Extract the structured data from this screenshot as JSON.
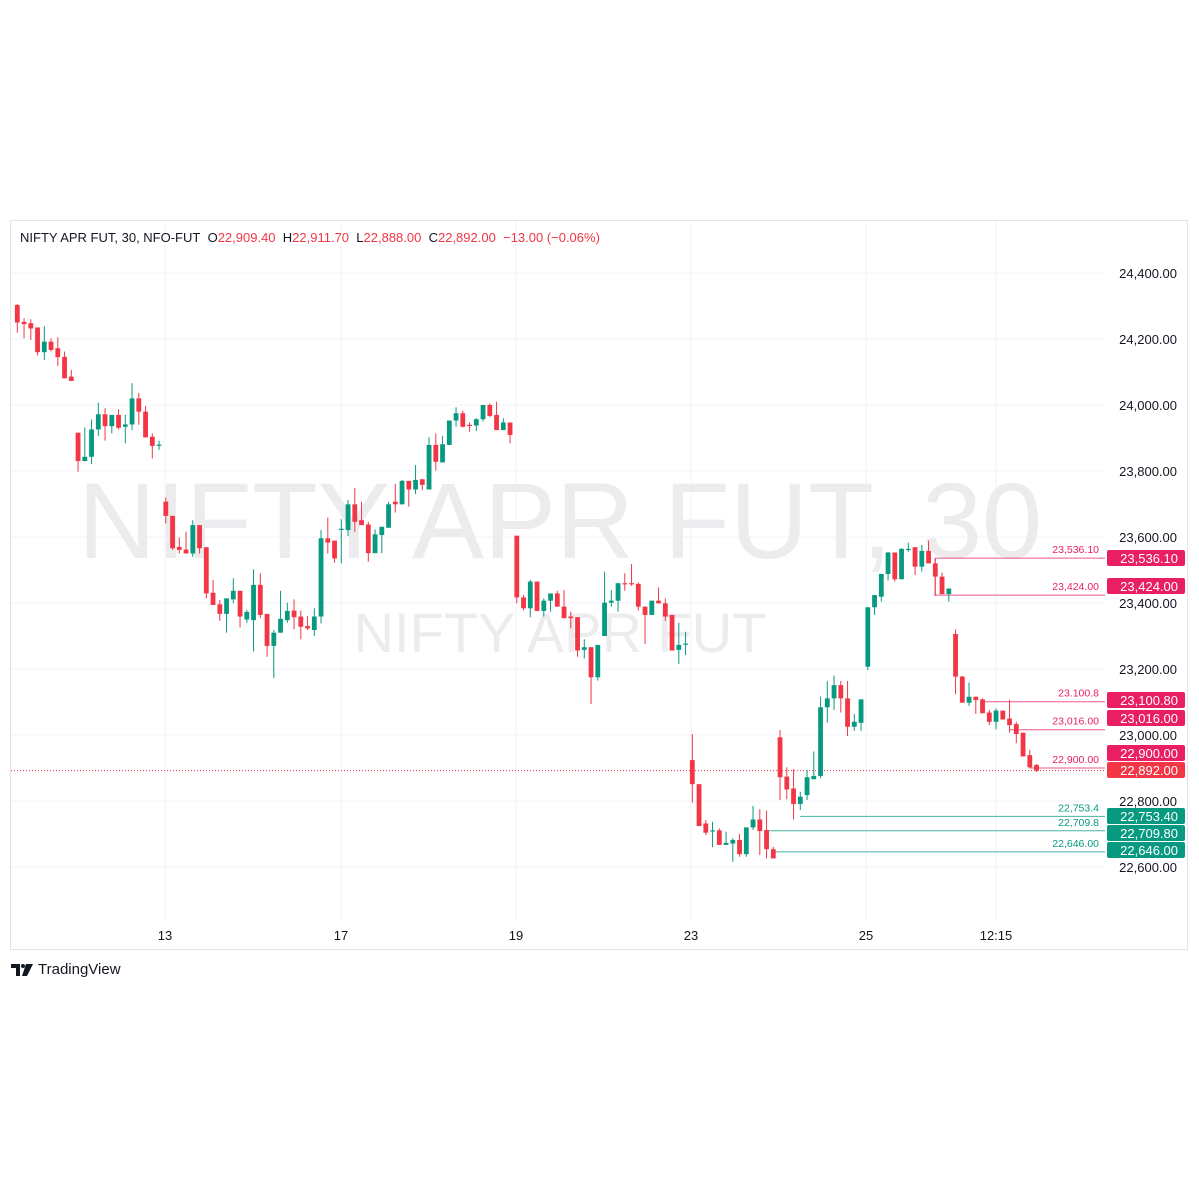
{
  "legend": {
    "symbol": "NIFTY APR FUT, 30, NFO-FUT",
    "o_label": "O",
    "o": "22,909.40",
    "h_label": "H",
    "h": "22,911.70",
    "l_label": "L",
    "l": "22,888.00",
    "c_label": "C",
    "c": "22,892.00",
    "change": "−13.00 (−0.06%)"
  },
  "watermark": {
    "line1": "NIFTY APR FUT, 30",
    "line2": "NIFTY APR FUT"
  },
  "branding": {
    "name": "TradingView"
  },
  "colors": {
    "up": "#089981",
    "down": "#f23645",
    "level_pink": "#e91e63",
    "level_green": "#089981",
    "last_price": "#f23645"
  },
  "chart_data": {
    "type": "candlestick",
    "title": "",
    "interval": "30",
    "ylim": [
      22500,
      24500
    ],
    "grid": true,
    "y_ticks": [
      "24,400.00",
      "24,200.00",
      "24,000.00",
      "23,800.00",
      "23,600.00",
      "23,400.00",
      "23,200.00",
      "23,000.00",
      "22,800.00",
      "22,600.00"
    ],
    "x_ticks": [
      "13",
      "17",
      "19",
      "23",
      "25",
      "12:15"
    ],
    "ohlc": [
      [
        24303,
        24306,
        24219,
        24250
      ],
      [
        24252,
        24263,
        24202,
        24245
      ],
      [
        24248,
        24260,
        24197,
        24232
      ],
      [
        24235,
        24235,
        24150,
        24160
      ],
      [
        24160,
        24239,
        24136,
        24192
      ],
      [
        24192,
        24202,
        24162,
        24167
      ],
      [
        24172,
        24205,
        24118,
        24145
      ],
      [
        24146,
        24162,
        24081,
        24081
      ],
      [
        24086,
        24106,
        24073,
        24073
      ],
      [
        23916,
        23916,
        23798,
        23830
      ],
      [
        23830,
        23932,
        23830,
        23843
      ],
      [
        23843,
        23956,
        23821,
        23926
      ],
      [
        23926,
        24007,
        23906,
        23972
      ],
      [
        23972,
        23990,
        23892,
        23936
      ],
      [
        23936,
        23970,
        23914,
        23970
      ],
      [
        23970,
        23987,
        23926,
        23931
      ],
      [
        23934,
        23970,
        23884,
        23941
      ],
      [
        23941,
        24066,
        23924,
        24020
      ],
      [
        24020,
        24037,
        23940,
        23980
      ],
      [
        23980,
        23997,
        23902,
        23902
      ],
      [
        23904,
        23914,
        23838,
        23876
      ],
      [
        23878,
        23892,
        23864,
        23880
      ],
      [
        23707,
        23720,
        23641,
        23664
      ],
      [
        23664,
        23664,
        23561,
        23566
      ],
      [
        23570,
        23599,
        23550,
        23561
      ],
      [
        23562,
        23616,
        23550,
        23550
      ],
      [
        23550,
        23651,
        23540,
        23636
      ],
      [
        23636,
        23636,
        23550,
        23566
      ],
      [
        23569,
        23569,
        23414,
        23429
      ],
      [
        23431,
        23470,
        23394,
        23394
      ],
      [
        23396,
        23409,
        23346,
        23367
      ],
      [
        23367,
        23414,
        23310,
        23414
      ],
      [
        23411,
        23475,
        23399,
        23437
      ],
      [
        23437,
        23437,
        23326,
        23359
      ],
      [
        23350,
        23379,
        23340,
        23373
      ],
      [
        23348,
        23502,
        23253,
        23455
      ],
      [
        23455,
        23490,
        23354,
        23364
      ],
      [
        23367,
        23367,
        23237,
        23270
      ],
      [
        23270,
        23318,
        23172,
        23310
      ],
      [
        23310,
        23437,
        23310,
        23352
      ],
      [
        23348,
        23401,
        23340,
        23376
      ],
      [
        23377,
        23411,
        23320,
        23357
      ],
      [
        23359,
        23377,
        23290,
        23328
      ],
      [
        23330,
        23360,
        23318,
        23323
      ],
      [
        23318,
        23384,
        23300,
        23359
      ],
      [
        23359,
        23621,
        23338,
        23596
      ],
      [
        23596,
        23659,
        23550,
        23583
      ],
      [
        23589,
        23589,
        23522,
        23535
      ],
      [
        23623,
        23654,
        23520,
        23625
      ],
      [
        23621,
        23712,
        23603,
        23699
      ],
      [
        23699,
        23748,
        23616,
        23646
      ],
      [
        23651,
        23707,
        23636,
        23636
      ],
      [
        23638,
        23646,
        23525,
        23551
      ],
      [
        23551,
        23623,
        23551,
        23608
      ],
      [
        23606,
        23631,
        23551,
        23631
      ],
      [
        23628,
        23707,
        23628,
        23699
      ],
      [
        23707,
        23761,
        23674,
        23699
      ],
      [
        23699,
        23773,
        23699,
        23770
      ],
      [
        23770,
        23770,
        23692,
        23744
      ],
      [
        23744,
        23818,
        23730,
        23773
      ],
      [
        23775,
        23775,
        23742,
        23758
      ],
      [
        23744,
        23902,
        23744,
        23879
      ],
      [
        23879,
        23914,
        23801,
        23828
      ],
      [
        23826,
        23906,
        23826,
        23881
      ],
      [
        23879,
        23953,
        23879,
        23953
      ],
      [
        23953,
        23993,
        23934,
        23975
      ],
      [
        23975,
        23983,
        23932,
        23934
      ],
      [
        23940,
        23947,
        23919,
        23938
      ],
      [
        23938,
        23960,
        23921,
        23957
      ],
      [
        23957,
        24000,
        23950,
        24000
      ],
      [
        24000,
        24005,
        23963,
        23967
      ],
      [
        23970,
        24010,
        23924,
        23924
      ],
      [
        23924,
        23960,
        23924,
        23947
      ],
      [
        23947,
        23947,
        23884,
        23909
      ],
      [
        23604,
        23604,
        23399,
        23417
      ],
      [
        23417,
        23424,
        23377,
        23384
      ],
      [
        23384,
        23470,
        23357,
        23465
      ],
      [
        23465,
        23465,
        23376,
        23376
      ],
      [
        23376,
        23414,
        23359,
        23407
      ],
      [
        23407,
        23429,
        23374,
        23429
      ],
      [
        23429,
        23437,
        23389,
        23389
      ],
      [
        23389,
        23439,
        23354,
        23354
      ],
      [
        23359,
        23374,
        23323,
        23354
      ],
      [
        23357,
        23357,
        23237,
        23256
      ],
      [
        23258,
        23290,
        23232,
        23266
      ],
      [
        23266,
        23266,
        23094,
        23175
      ],
      [
        23175,
        23273,
        23165,
        23273
      ],
      [
        23300,
        23495,
        23300,
        23401
      ],
      [
        23401,
        23439,
        23389,
        23407
      ],
      [
        23407,
        23460,
        23374,
        23460
      ],
      [
        23460,
        23490,
        23437,
        23458
      ],
      [
        23460,
        23518,
        23452,
        23458
      ],
      [
        23458,
        23462,
        23377,
        23389
      ],
      [
        23389,
        23389,
        23276,
        23364
      ],
      [
        23364,
        23407,
        23364,
        23407
      ],
      [
        23407,
        23447,
        23399,
        23399
      ],
      [
        23399,
        23414,
        23346,
        23359
      ],
      [
        23364,
        23364,
        23256,
        23256
      ],
      [
        23258,
        23340,
        23215,
        23273
      ],
      [
        23275,
        23313,
        23242,
        23277
      ],
      [
        22924,
        23003,
        22795,
        22851
      ],
      [
        22851,
        22851,
        22724,
        22724
      ],
      [
        22732,
        22742,
        22697,
        22704
      ],
      [
        22709,
        22737,
        22660,
        22711
      ],
      [
        22711,
        22717,
        22667,
        22667
      ],
      [
        22667,
        22707,
        22667,
        22673
      ],
      [
        22671,
        22687,
        22616,
        22682
      ],
      [
        22682,
        22700,
        22631,
        22639
      ],
      [
        22639,
        22720,
        22631,
        22720
      ],
      [
        22720,
        22785,
        22712,
        22744
      ],
      [
        22744,
        22775,
        22636,
        22709
      ],
      [
        22712,
        22771,
        22626,
        22654
      ],
      [
        22654,
        22661,
        22626,
        22626
      ],
      [
        22993,
        23015,
        22803,
        22872
      ],
      [
        22874,
        22902,
        22805,
        22835
      ],
      [
        22838,
        22896,
        22744,
        22791
      ],
      [
        22791,
        22828,
        22773,
        22813
      ],
      [
        22818,
        22894,
        22803,
        22872
      ],
      [
        22866,
        22950,
        22866,
        22876
      ],
      [
        22876,
        23116,
        22869,
        23084
      ],
      [
        23084,
        23164,
        23037,
        23111
      ],
      [
        23111,
        23180,
        23076,
        23151
      ],
      [
        23151,
        23164,
        23068,
        23111
      ],
      [
        23111,
        23164,
        22997,
        23025
      ],
      [
        23025,
        23064,
        23013,
        23040
      ],
      [
        23037,
        23108,
        23013,
        23108
      ],
      [
        23207,
        23387,
        23197,
        23387
      ],
      [
        23387,
        23424,
        23364,
        23424
      ],
      [
        23419,
        23488,
        23404,
        23488
      ],
      [
        23488,
        23555,
        23468,
        23553
      ],
      [
        23553,
        23553,
        23465,
        23472
      ],
      [
        23472,
        23566,
        23472,
        23564
      ],
      [
        23562,
        23583,
        23555,
        23564
      ],
      [
        23569,
        23569,
        23485,
        23510
      ],
      [
        23510,
        23576,
        23495,
        23558
      ],
      [
        23558,
        23589,
        23520,
        23520
      ],
      [
        23520,
        23535,
        23421,
        23480
      ],
      [
        23480,
        23492,
        23427,
        23427
      ],
      [
        23427,
        23444,
        23404,
        23444
      ],
      [
        23306,
        23320,
        23124,
        23177
      ],
      [
        23177,
        23179,
        23098,
        23098
      ],
      [
        23098,
        23159,
        23088,
        23116
      ],
      [
        23116,
        23116,
        23064,
        23106
      ],
      [
        23108,
        23111,
        23066,
        23066
      ],
      [
        23068,
        23076,
        23030,
        23040
      ],
      [
        23040,
        23081,
        23017,
        23074
      ],
      [
        23074,
        23074,
        23047,
        23047
      ],
      [
        23050,
        23107,
        23007,
        23030
      ],
      [
        23033,
        23040,
        22975,
        23003
      ],
      [
        23007,
        23007,
        22935,
        22935
      ],
      [
        22939,
        22955,
        22899,
        22902
      ],
      [
        22909.4,
        22911.7,
        22888,
        22892
      ]
    ],
    "levels": [
      {
        "price": 23536.1,
        "label": "23,536.10",
        "tag": "23,536.10",
        "color": "pink"
      },
      {
        "price": 23424.0,
        "label": "23,424.00",
        "tag": "23,424.00",
        "color": "pink"
      },
      {
        "price": 23100.8,
        "label": "23.100.8",
        "tag": "23,100.80",
        "color": "pink"
      },
      {
        "price": 23016.0,
        "label": "23,016.00",
        "tag": "23,016.00",
        "color": "pink"
      },
      {
        "price": 22900.0,
        "label": "22,900.00",
        "tag": "22,900.00",
        "color": "pink"
      },
      {
        "price": 22753.4,
        "label": "22,753.4",
        "tag": "22,753.40",
        "color": "green"
      },
      {
        "price": 22709.8,
        "label": "22,709.8",
        "tag": "22,709.80",
        "color": "green"
      },
      {
        "price": 22646.0,
        "label": "22,646.00",
        "tag": "22,646.00",
        "color": "green"
      }
    ],
    "last_price": {
      "price": 22892.0,
      "tag": "22,892.00"
    }
  }
}
